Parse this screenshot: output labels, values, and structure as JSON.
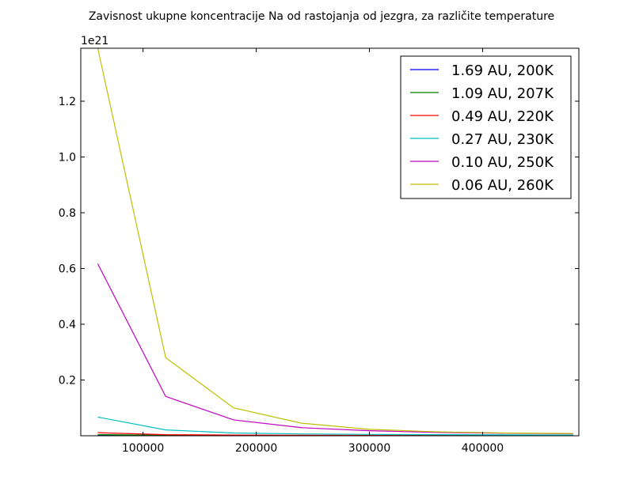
{
  "chart_data": {
    "type": "line",
    "title": "Zavisnost ukupne koncentracije Na od rastojanja od jezgra, za različite temperature",
    "xlabel": "",
    "ylabel": "",
    "y_offset_label": "1e21",
    "xlim": [
      45000,
      485000
    ],
    "ylim": [
      0,
      1.39
    ],
    "x_ticks": [
      100000,
      200000,
      300000,
      400000
    ],
    "x_tick_labels": [
      "100000",
      "200000",
      "300000",
      "400000"
    ],
    "y_ticks": [
      0.2,
      0.4,
      0.6,
      0.8,
      1.0,
      1.2
    ],
    "y_tick_labels": [
      "0.2",
      "0.4",
      "0.6",
      "0.8",
      "1.0",
      "1.2"
    ],
    "grid": false,
    "legend_position": "upper-right",
    "x": [
      60000,
      120000,
      180000,
      240000,
      300000,
      360000,
      420000,
      480000
    ],
    "series": [
      {
        "name": "1.69 AU, 200K",
        "color": "#0000ff",
        "values": [
          0.0025,
          0.0012,
          0.0008,
          0.0006,
          0.0005,
          0.0004,
          0.0003,
          0.0003
        ]
      },
      {
        "name": "1.09 AU, 207K",
        "color": "#008000",
        "values": [
          0.004,
          0.0018,
          0.0012,
          0.0009,
          0.0007,
          0.0006,
          0.0005,
          0.0004
        ]
      },
      {
        "name": "0.49 AU, 220K",
        "color": "#ff0000",
        "values": [
          0.011,
          0.004,
          0.0025,
          0.0018,
          0.0014,
          0.0012,
          0.001,
          0.0009
        ]
      },
      {
        "name": "0.27 AU, 230K",
        "color": "#00bfbf",
        "values": [
          0.067,
          0.021,
          0.01,
          0.0065,
          0.0048,
          0.0038,
          0.0031,
          0.0026
        ]
      },
      {
        "name": "0.10 AU, 250K",
        "color": "#bf00bf",
        "values": [
          0.617,
          0.141,
          0.057,
          0.029,
          0.018,
          0.012,
          0.009,
          0.007
        ]
      },
      {
        "name": "0.06 AU, 260K",
        "color": "#bfbf00",
        "values": [
          1.39,
          0.28,
          0.1,
          0.045,
          0.023,
          0.014,
          0.01,
          0.008
        ]
      }
    ]
  }
}
